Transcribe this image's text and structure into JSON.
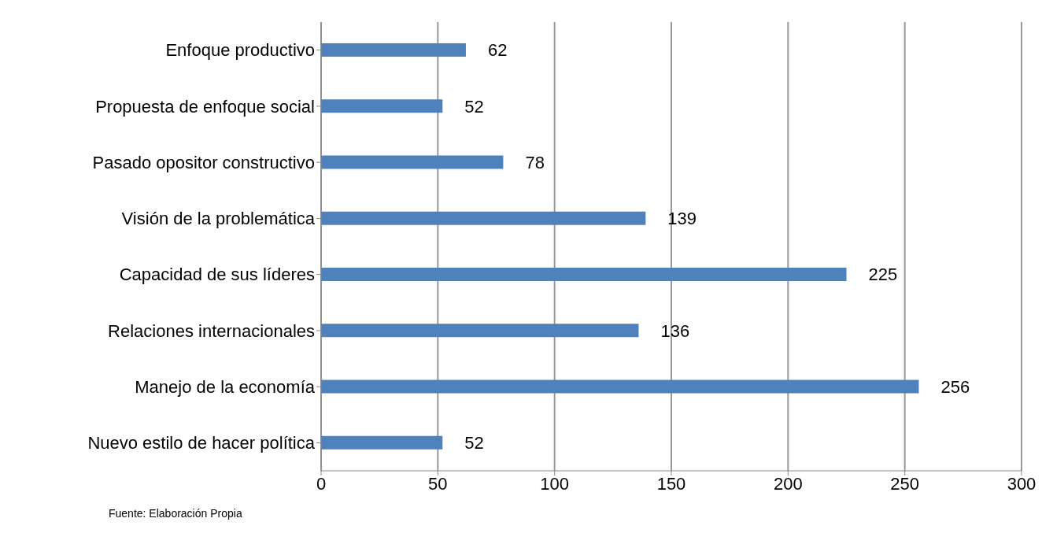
{
  "chart_data": {
    "type": "bar",
    "orientation": "horizontal",
    "categories": [
      "Enfoque productivo",
      "Propuesta de enfoque social",
      "Pasado opositor constructivo",
      "Visión de la problemática",
      "Capacidad de sus líderes",
      "Relaciones internacionales",
      "Manejo de la economía",
      "Nuevo estilo de hacer política"
    ],
    "values": [
      62,
      52,
      78,
      139,
      225,
      136,
      256,
      52
    ],
    "color": "#4f81bd",
    "xlim": [
      0,
      300
    ],
    "xticks": [
      0,
      50,
      100,
      150,
      200,
      250,
      300
    ],
    "grid": "x",
    "data_labels": true,
    "annotations": [
      "Fuente: Elaboración Propia"
    ]
  }
}
